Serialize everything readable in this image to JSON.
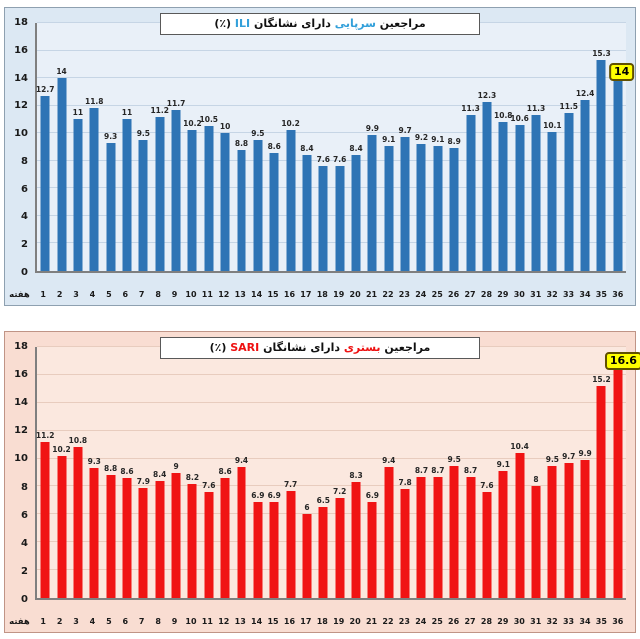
{
  "page": {
    "background": "#ffffff"
  },
  "chart_data": [
    {
      "type": "bar",
      "title": "مراجعین سرپایی دارای نشانگان ILI (٪)",
      "title_parts": [
        {
          "text": "مراجعین ",
          "color": null
        },
        {
          "text": "سرپایی",
          "color": "#33A0DA"
        },
        {
          "text": " دارای نشانگان ",
          "color": null
        },
        {
          "text": "ILI",
          "color": "#33A0DA"
        },
        {
          "text": " (٪)",
          "color": null
        }
      ],
      "xlabel": "هفته",
      "ylabel": "",
      "categories": [
        "1",
        "2",
        "3",
        "4",
        "5",
        "6",
        "7",
        "8",
        "9",
        "10",
        "11",
        "12",
        "13",
        "14",
        "15",
        "16",
        "17",
        "18",
        "19",
        "20",
        "21",
        "22",
        "23",
        "24",
        "25",
        "26",
        "27",
        "28",
        "29",
        "30",
        "31",
        "32",
        "33",
        "34",
        "35",
        "36"
      ],
      "values": [
        12.7,
        14,
        11,
        11.8,
        9.3,
        11,
        9.5,
        11.2,
        11.7,
        10.2,
        10.5,
        10,
        8.8,
        9.5,
        8.6,
        10.2,
        8.4,
        7.6,
        7.6,
        8.4,
        9.9,
        9.1,
        9.7,
        9.2,
        9.1,
        8.9,
        11.3,
        12.3,
        10.8,
        10.6,
        11.3,
        10.1,
        11.5,
        12.4,
        15.3,
        14
      ],
      "ylim": [
        0,
        18
      ],
      "ytick_step": 2,
      "grid": true,
      "legend_position": "none",
      "highlight": {
        "index": 35,
        "label": "14",
        "bg": "#FFFF00",
        "border": "#605000"
      },
      "colors": {
        "bar": "#2E74B5",
        "chart_bg": "#DCE8F3",
        "plot_bg": "#E9F0F8",
        "grid": "#C6D5E5",
        "border": "#8EA0B0"
      }
    },
    {
      "type": "bar",
      "title": "مراجعین بستری دارای نشانگان SARI (٪)",
      "title_parts": [
        {
          "text": "مراجعین ",
          "color": null
        },
        {
          "text": "بستری",
          "color": "#EE1111"
        },
        {
          "text": " دارای نشانگان ",
          "color": null
        },
        {
          "text": "SARI",
          "color": "#EE1111"
        },
        {
          "text": " (٪)",
          "color": null
        }
      ],
      "xlabel": "هفته",
      "ylabel": "",
      "categories": [
        "1",
        "2",
        "3",
        "4",
        "5",
        "6",
        "7",
        "8",
        "9",
        "10",
        "11",
        "12",
        "13",
        "14",
        "15",
        "16",
        "17",
        "18",
        "19",
        "20",
        "21",
        "22",
        "23",
        "24",
        "25",
        "26",
        "27",
        "28",
        "29",
        "30",
        "31",
        "32",
        "33",
        "34",
        "35",
        "36"
      ],
      "values": [
        11.2,
        10.2,
        10.8,
        9.3,
        8.8,
        8.6,
        7.9,
        8.4,
        9,
        8.2,
        7.6,
        8.6,
        9.4,
        6.9,
        6.9,
        7.7,
        6,
        6.5,
        7.2,
        8.3,
        6.9,
        9.4,
        7.8,
        8.7,
        8.7,
        9.5,
        8.7,
        7.6,
        9.1,
        10.4,
        8,
        9.5,
        9.7,
        9.9,
        15.2,
        16.6
      ],
      "ylim": [
        0,
        18
      ],
      "ytick_step": 2,
      "grid": true,
      "legend_position": "none",
      "highlight": {
        "index": 35,
        "label": "16.6",
        "bg": "#FFFF00",
        "border": "#605000"
      },
      "colors": {
        "bar": "#F01414",
        "chart_bg": "#F9DDD2",
        "plot_bg": "#FBE8DF",
        "grid": "#E8CCBE",
        "border": "#C09486"
      }
    }
  ]
}
